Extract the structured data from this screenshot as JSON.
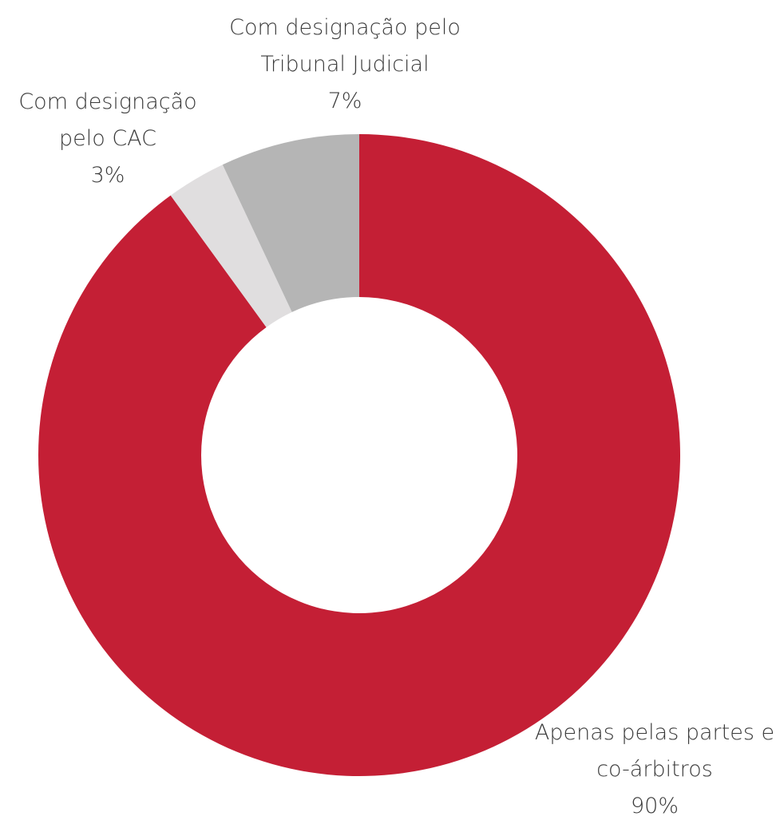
{
  "chart_data": {
    "type": "donut",
    "categories": [
      "Apenas pelas partes e co-árbitros",
      "Com designação pelo CAC",
      "Com designação pelo Tribunal Judicial"
    ],
    "values": [
      90,
      3,
      7
    ],
    "value_labels": [
      "90%",
      "3%",
      "7%"
    ],
    "colors": [
      "#c41f35",
      "#e0dedf",
      "#b5b5b5"
    ]
  }
}
